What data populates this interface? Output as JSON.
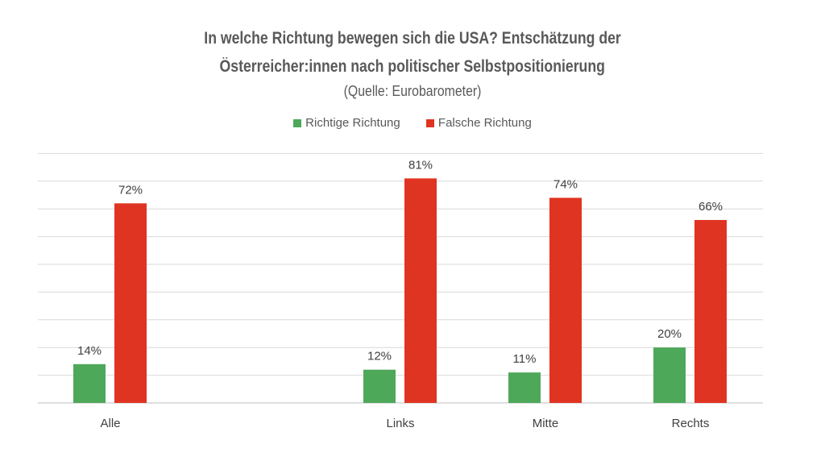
{
  "chart_data": {
    "type": "bar",
    "title": "In welche Richtung bewegen sich die USA? Entschätzung der",
    "title_line2": "Österreicher:innen nach politischer Selbstpositionierung",
    "subtitle": "(Quelle: Eurobarometer)",
    "categories": [
      "Alle",
      "",
      "Links",
      "Mitte",
      "Rechts"
    ],
    "series": [
      {
        "name": "Richtige Richtung",
        "color": "#4EA85A",
        "values": [
          14,
          null,
          12,
          11,
          20
        ]
      },
      {
        "name": "Falsche Richtung",
        "color": "#E03422",
        "values": [
          72,
          null,
          81,
          74,
          66
        ]
      }
    ],
    "value_suffix": "%",
    "xlabel": "",
    "ylabel": "",
    "ylim": [
      0,
      90
    ],
    "grid_step": 10,
    "grid": true,
    "legend_position": "top-center"
  }
}
